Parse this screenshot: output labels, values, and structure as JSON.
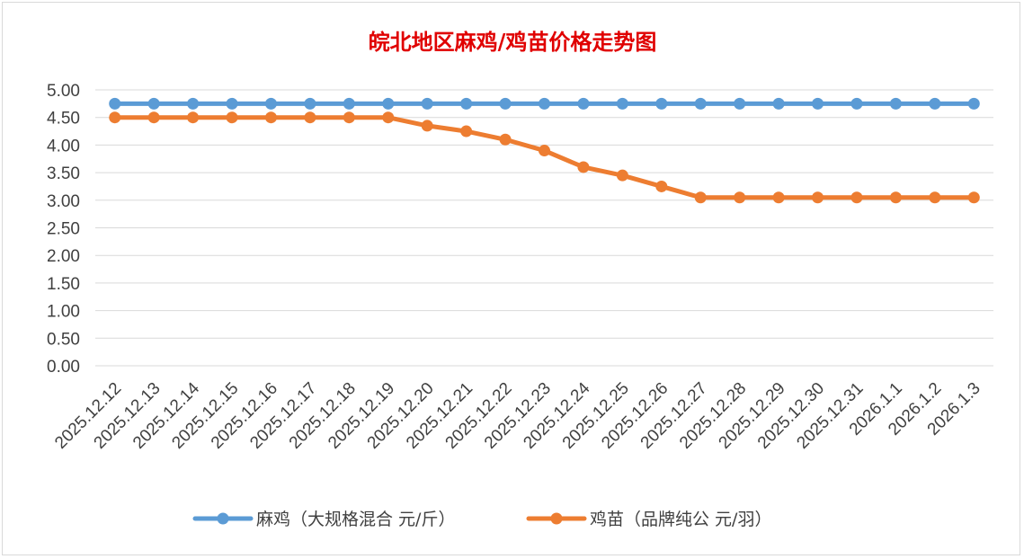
{
  "chart_data": {
    "type": "line",
    "title": "皖北地区麻鸡/鸡苗价格走势图",
    "categories": [
      "2025.12.12",
      "2025.12.13",
      "2025.12.14",
      "2025.12.15",
      "2025.12.16",
      "2025.12.17",
      "2025.12.18",
      "2025.12.19",
      "2025.12.20",
      "2025.12.21",
      "2025.12.22",
      "2025.12.23",
      "2025.12.24",
      "2025.12.25",
      "2025.12.26",
      "2025.12.27",
      "2025.12.28",
      "2025.12.29",
      "2025.12.30",
      "2025.12.31",
      "2026.1.1",
      "2026.1.2",
      "2026.1.3"
    ],
    "ylim": [
      0,
      5
    ],
    "yticks": [
      "0.00",
      "0.50",
      "1.00",
      "1.50",
      "2.00",
      "2.50",
      "3.00",
      "3.50",
      "4.00",
      "4.50",
      "5.00"
    ],
    "grid": true,
    "legend_position": "bottom",
    "series": [
      {
        "name": "麻鸡（大规格混合 元/斤）",
        "color": "#5b9bd5",
        "values": [
          4.75,
          4.75,
          4.75,
          4.75,
          4.75,
          4.75,
          4.75,
          4.75,
          4.75,
          4.75,
          4.75,
          4.75,
          4.75,
          4.75,
          4.75,
          4.75,
          4.75,
          4.75,
          4.75,
          4.75,
          4.75,
          4.75,
          4.75
        ]
      },
      {
        "name": "鸡苗（品牌纯公 元/羽）",
        "color": "#ed7d31",
        "values": [
          4.5,
          4.5,
          4.5,
          4.5,
          4.5,
          4.5,
          4.5,
          4.5,
          4.35,
          4.25,
          4.1,
          3.9,
          3.6,
          3.45,
          3.25,
          3.05,
          3.05,
          3.05,
          3.05,
          3.05,
          3.05,
          3.05,
          3.05
        ]
      }
    ]
  }
}
